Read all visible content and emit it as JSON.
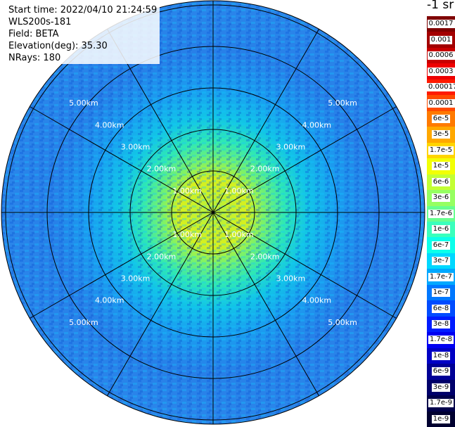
{
  "info": {
    "start_time": "Start time: 2022/04/10 21:24:59",
    "instrument": "WLS200s-181",
    "field": "Field: BETA",
    "elevation": "Elevation(deg): 35.30",
    "nrays": "NRays: 180"
  },
  "colorbar": {
    "unit": "-1 sr",
    "labels": [
      "0.0017",
      "0.001",
      "0.0006",
      "0.0003",
      "0.00017",
      "0.0001",
      "6e-5",
      "3e-5",
      "1.7e-5",
      "1e-5",
      "6e-6",
      "3e-6",
      "1.7e-6",
      "1e-6",
      "6e-7",
      "3e-7",
      "1.7e-7",
      "1e-7",
      "6e-8",
      "3e-8",
      "1.7e-8",
      "1e-8",
      "6e-9",
      "3e-9",
      "1.7e-9",
      "1e-9"
    ],
    "colors": [
      "#7f0000",
      "#a30000",
      "#c80000",
      "#ee0000",
      "#ff1a00",
      "#ff4a00",
      "#ff7a00",
      "#ffa800",
      "#ffd500",
      "#f2ff05",
      "#c3ff34",
      "#96ff61",
      "#68ff8f",
      "#3bffbc",
      "#0cffea",
      "#00d8ff",
      "#00a8ff",
      "#0078ff",
      "#004cff",
      "#001cff",
      "#0000f1",
      "#0000c4",
      "#000096",
      "#00006a",
      "#00004a",
      "#000030"
    ]
  },
  "range_labels": [
    "1.00km",
    "1.00km",
    "1.00km",
    "1.00km",
    "2.00km",
    "2.00km",
    "2.00km",
    "2.00km",
    "3.00km",
    "3.00km",
    "3.00km",
    "3.00km",
    "4.00km",
    "4.00km",
    "4.00km",
    "4.00km",
    "5.00km",
    "5.00km",
    "5.00km",
    "5.00km"
  ]
}
